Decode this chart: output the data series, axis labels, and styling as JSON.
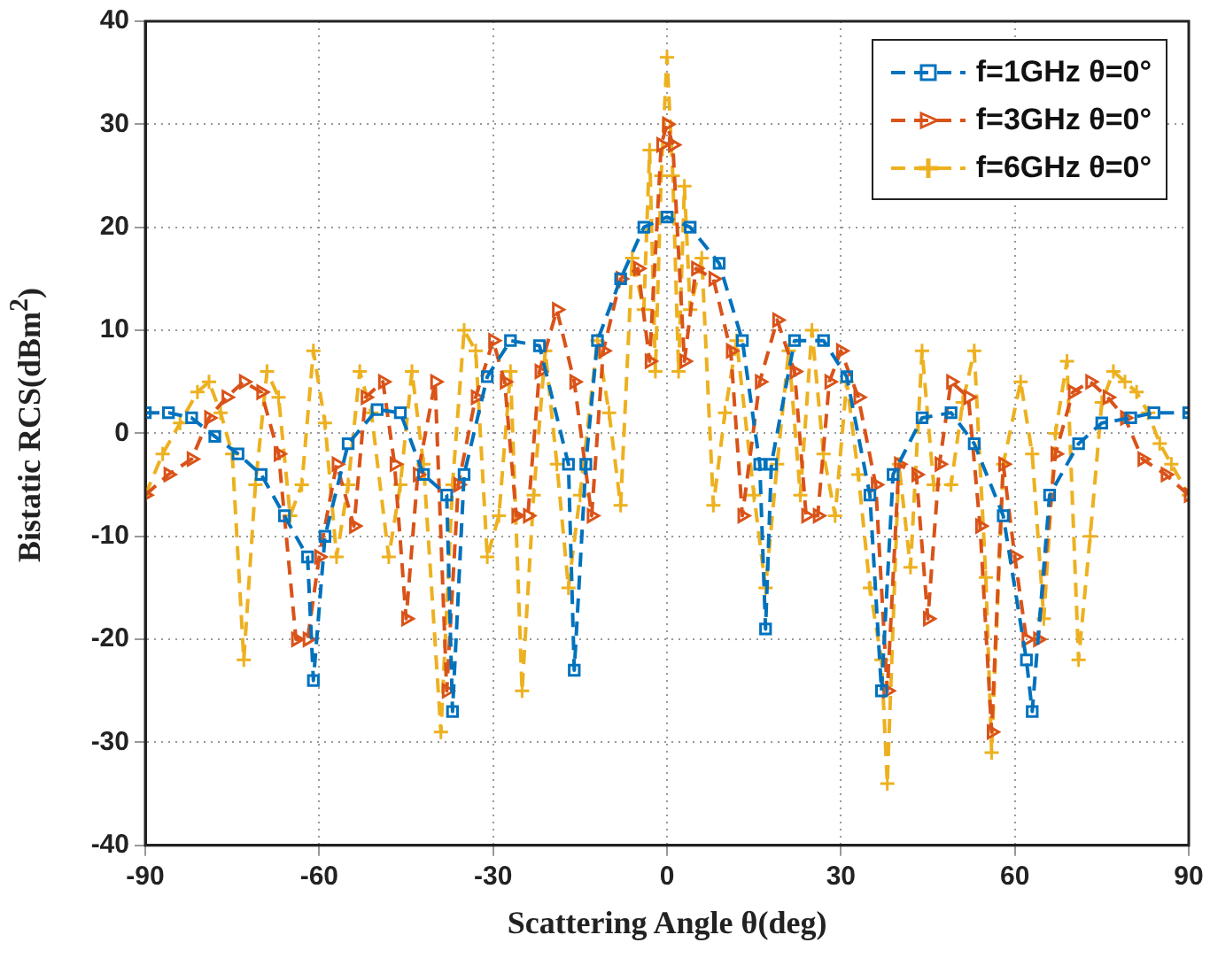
{
  "chart_data": {
    "type": "line",
    "xlabel": "Scattering Angle θ(deg)",
    "ylabel": "Bistatic RCS(dBm$^{2}$)",
    "xlim": [
      -90,
      90
    ],
    "xticks": [
      -90,
      -60,
      -30,
      0,
      30,
      60,
      90
    ],
    "ylim": [
      -40,
      40
    ],
    "yticks": [
      -40,
      -30,
      -20,
      -10,
      0,
      10,
      20,
      30,
      40
    ],
    "grid": true,
    "legend": "top right",
    "line_style": "dashed",
    "series": [
      {
        "name": "f=1GHz θ=0°",
        "color": "#0072bd",
        "marker": "square",
        "x": [
          -90,
          -86,
          -82,
          -78,
          -74,
          -70,
          -66,
          -62,
          -61,
          -59,
          -55,
          -50,
          -46,
          -42,
          -38,
          -37,
          -35,
          -31,
          -27,
          -22,
          -17,
          -16,
          -14,
          -12,
          -8,
          -4,
          0,
          4,
          9,
          13,
          16,
          17,
          18,
          22,
          27,
          31,
          35,
          37,
          39,
          44,
          49,
          53,
          58,
          62,
          63,
          66,
          71,
          75,
          80,
          84,
          90
        ],
        "values": [
          2,
          2,
          1.5,
          -0.3,
          -2,
          -4,
          -8,
          -12,
          -24,
          -10,
          -1,
          2.3,
          2,
          -4,
          -6,
          -27,
          -4,
          5.5,
          9,
          8.5,
          -3,
          -23,
          -3,
          9,
          15,
          20,
          21,
          20,
          16.5,
          9,
          -3,
          -19,
          -3,
          9,
          9,
          5.5,
          -6,
          -25,
          -4,
          1.5,
          2,
          -1,
          -8,
          -22,
          -27,
          -6,
          -1,
          1,
          1.5,
          2,
          2
        ]
      },
      {
        "name": "f=3GHz θ=0°",
        "color": "#d95319",
        "marker": "triangle",
        "x": [
          -90,
          -86,
          -82,
          -79,
          -76,
          -73,
          -70,
          -67,
          -64,
          -62,
          -60,
          -57,
          -54,
          -52,
          -49,
          -47,
          -45,
          -43,
          -40,
          -38,
          -36,
          -33,
          -30,
          -28,
          -26,
          -24,
          -22,
          -19,
          -16,
          -13,
          -11,
          -8,
          -5,
          -3,
          -1,
          0,
          1,
          3,
          5,
          8,
          11,
          13,
          16,
          19,
          22,
          24,
          26,
          28,
          30,
          33,
          36,
          38,
          40,
          43,
          45,
          47,
          49,
          52,
          54,
          56,
          58,
          60,
          62,
          64,
          67,
          70,
          73,
          76,
          79,
          82,
          86,
          90
        ],
        "values": [
          -6,
          -4,
          -2.5,
          1.5,
          3.5,
          5,
          4,
          -2,
          -20,
          -20,
          -12,
          -3,
          -9,
          3.5,
          5,
          -3,
          -18,
          -4,
          5,
          -25,
          -5,
          3.5,
          9,
          5,
          -8,
          -8,
          6,
          12,
          5,
          -8,
          8,
          15,
          16,
          7,
          28,
          30,
          28,
          7,
          16,
          15,
          8,
          -8,
          5,
          11,
          6,
          -8,
          -8,
          5,
          8,
          3.5,
          -5,
          -25,
          -3,
          -4,
          -18,
          -3,
          5,
          3.5,
          -9,
          -29,
          -3,
          -12,
          -20,
          -20,
          -2,
          4,
          5,
          3.5,
          1.5,
          -2.5,
          -4,
          -6
        ]
      },
      {
        "name": "f=6GHz θ=0°",
        "color": "#edb120",
        "marker": "cross",
        "x": [
          -90,
          -87,
          -84,
          -81,
          -79,
          -77,
          -75,
          -73,
          -71,
          -69,
          -67,
          -65,
          -63,
          -61,
          -59,
          -57,
          -55,
          -53,
          -51,
          -48,
          -46,
          -44,
          -42,
          -39,
          -37,
          -35,
          -33,
          -31,
          -29,
          -27,
          -25,
          -23,
          -21,
          -19,
          -17,
          -15,
          -12,
          -10,
          -8,
          -6,
          -4,
          -3,
          -2,
          -1,
          0,
          1,
          2,
          3,
          4,
          6,
          8,
          10,
          12,
          15,
          17,
          19,
          21,
          23,
          25,
          27,
          29,
          31,
          33,
          35,
          37,
          38,
          40,
          42,
          44,
          46,
          49,
          51,
          53,
          55,
          56,
          58,
          61,
          63,
          65,
          67,
          69,
          71,
          73,
          75,
          77,
          79,
          81,
          83,
          85,
          87,
          90
        ],
        "values": [
          -6,
          -2,
          1,
          4,
          5,
          2,
          -2,
          -22,
          -5,
          6,
          3.5,
          -8,
          -5,
          8,
          1,
          -12,
          -5,
          6,
          2,
          -12,
          -5,
          6,
          -3,
          -29,
          -5,
          10,
          8,
          -12,
          -8,
          6,
          -25,
          -6,
          8,
          -3,
          -15,
          -6,
          9,
          2,
          -7,
          17,
          12,
          27.5,
          6,
          25,
          36.5,
          25,
          6,
          24,
          12,
          17,
          -7,
          2,
          9,
          -6,
          -15,
          -3,
          8,
          -6,
          10,
          -2,
          -8,
          5,
          -4,
          -15,
          -22,
          -34,
          -3,
          -13,
          8,
          -5,
          -5,
          3,
          8,
          -14,
          -31,
          -3,
          5,
          -2,
          -18,
          0,
          7,
          -22,
          -10,
          3,
          6,
          5,
          4,
          2,
          -1,
          -3,
          -6
        ]
      }
    ]
  }
}
